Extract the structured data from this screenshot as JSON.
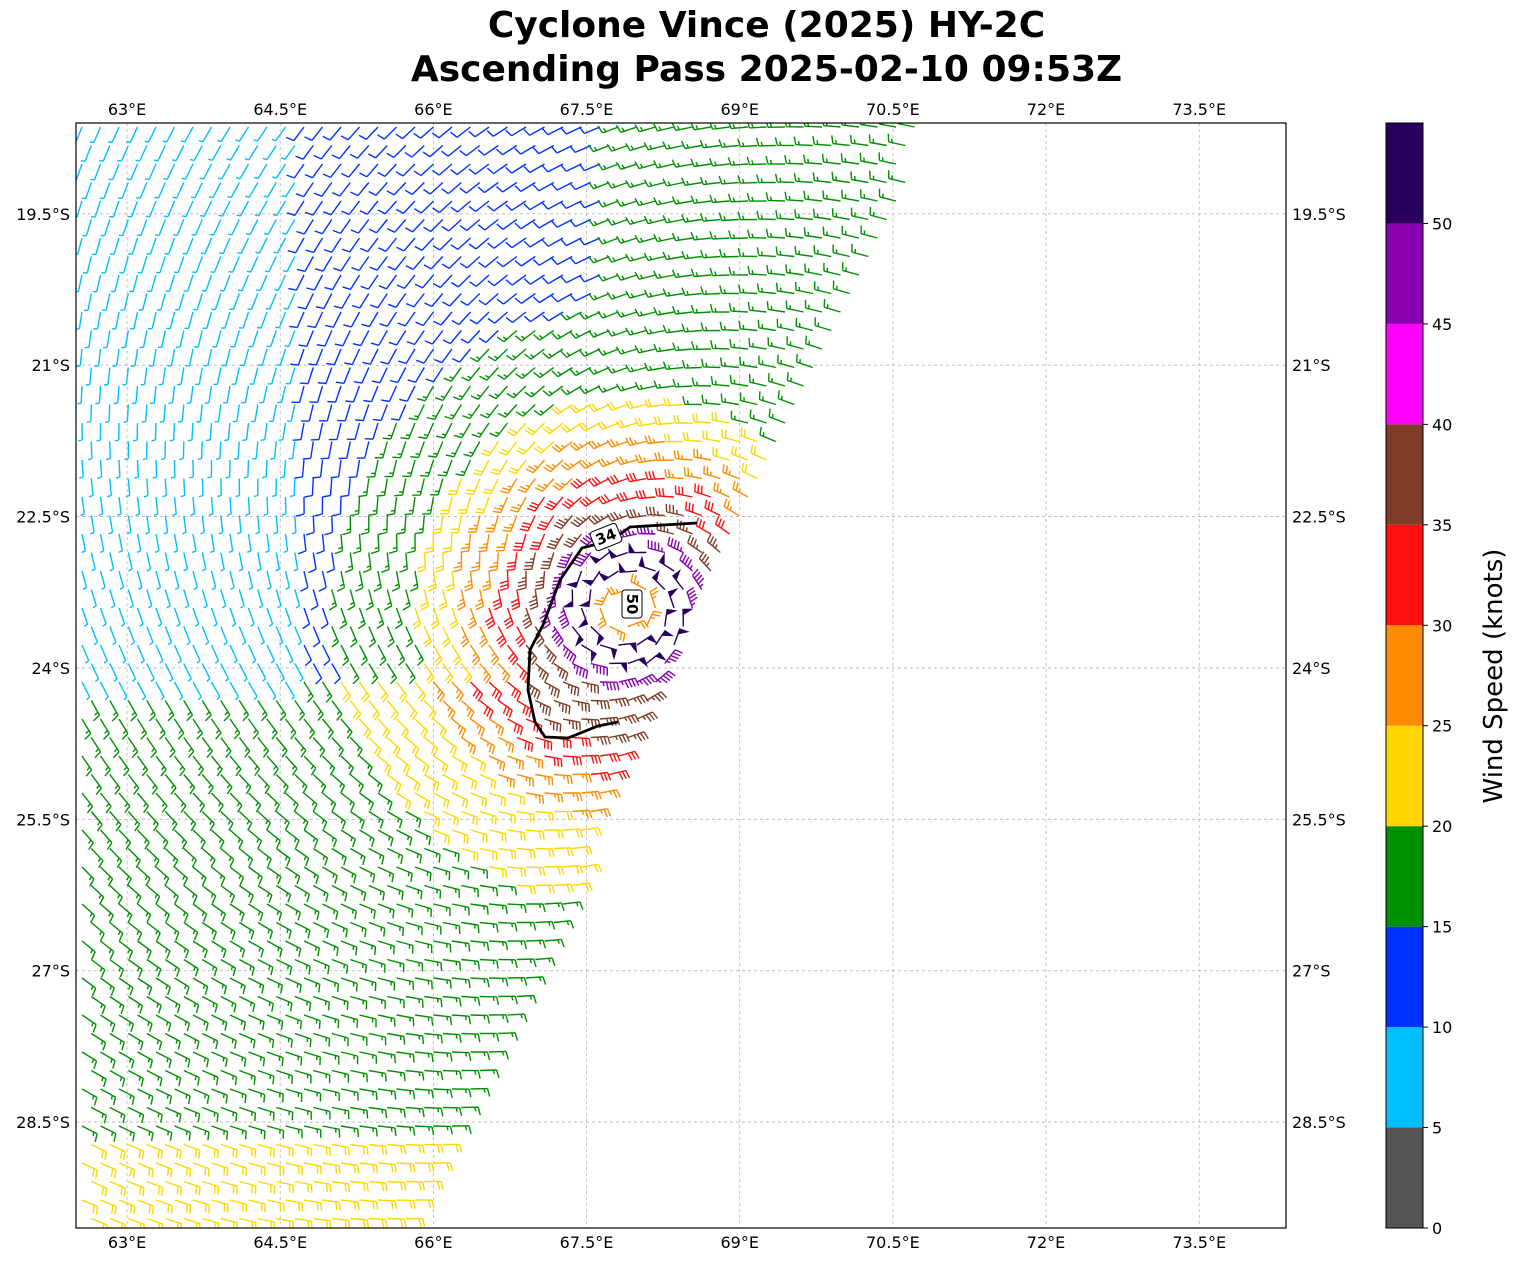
{
  "chart_data": {
    "type": "wind_barbs_map",
    "title": "Cyclone Vince (2025) HY-2C",
    "subtitle": "Ascending Pass 2025-02-10 09:53Z",
    "lon_range": [
      62.5,
      74.35
    ],
    "lat_range": [
      -29.55,
      -18.6
    ],
    "lon_ticks": [
      "63°E",
      "64.5°E",
      "66°E",
      "67.5°E",
      "69°E",
      "70.5°E",
      "72°E",
      "73.5°E"
    ],
    "lat_ticks": [
      "19.5°S",
      "21°S",
      "22.5°S",
      "24°S",
      "25.5°S",
      "27°S",
      "28.5°S"
    ],
    "lon_tick_values": [
      63,
      64.5,
      66,
      67.5,
      69,
      70.5,
      72,
      73.5
    ],
    "lat_tick_values": [
      -19.5,
      -21,
      -22.5,
      -24,
      -25.5,
      -27,
      -28.5
    ],
    "grid": true,
    "storm_center": {
      "lon": 67.9,
      "lat": -23.4
    },
    "swath": {
      "east_edge": [
        [
          70.9,
          -18.6
        ],
        [
          68.6,
          -23.5
        ],
        [
          65.8,
          -29.55
        ]
      ],
      "west_edge": [
        62.5
      ]
    },
    "contours": [
      {
        "label": "34",
        "level": 34
      },
      {
        "label": "50",
        "level": 50
      }
    ],
    "colorbar": {
      "label": "Wind Speed (knots)",
      "bounds": [
        0,
        5,
        10,
        15,
        20,
        25,
        30,
        35,
        40,
        45,
        50,
        55
      ],
      "tick_labels": [
        "0",
        "5",
        "10",
        "15",
        "20",
        "25",
        "30",
        "35",
        "40",
        "45",
        "50"
      ],
      "colors": [
        "#555555",
        "#00bfff",
        "#0033ff",
        "#009100",
        "#ffd700",
        "#ff8c00",
        "#ff1010",
        "#7f3c28",
        "#ff00ff",
        "#8800b0",
        "#2a005f"
      ]
    }
  }
}
